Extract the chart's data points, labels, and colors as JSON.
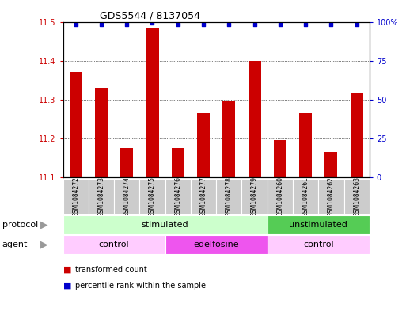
{
  "title": "GDS5544 / 8137054",
  "samples": [
    "GSM1084272",
    "GSM1084273",
    "GSM1084274",
    "GSM1084275",
    "GSM1084276",
    "GSM1084277",
    "GSM1084278",
    "GSM1084279",
    "GSM1084260",
    "GSM1084261",
    "GSM1084262",
    "GSM1084263"
  ],
  "bar_values": [
    11.37,
    11.33,
    11.175,
    11.485,
    11.175,
    11.265,
    11.295,
    11.4,
    11.195,
    11.265,
    11.165,
    11.315
  ],
  "percentile_values": [
    98,
    98,
    98,
    99,
    98,
    98,
    98,
    98,
    98,
    98,
    98,
    98
  ],
  "bar_color": "#cc0000",
  "percentile_color": "#0000cc",
  "ylim_left": [
    11.1,
    11.5
  ],
  "ylim_right": [
    0,
    100
  ],
  "yticks_left": [
    11.1,
    11.2,
    11.3,
    11.4,
    11.5
  ],
  "yticks_right": [
    0,
    25,
    50,
    75,
    100
  ],
  "protocol_groups": [
    {
      "label": "stimulated",
      "start": 0,
      "end": 8,
      "color": "#ccffcc"
    },
    {
      "label": "unstimulated",
      "start": 8,
      "end": 12,
      "color": "#55cc55"
    }
  ],
  "agent_groups": [
    {
      "label": "control",
      "start": 0,
      "end": 4,
      "color": "#ffccff"
    },
    {
      "label": "edelfosine",
      "start": 4,
      "end": 8,
      "color": "#ee55ee"
    },
    {
      "label": "control",
      "start": 8,
      "end": 12,
      "color": "#ffccff"
    }
  ],
  "legend_items": [
    {
      "label": "transformed count",
      "color": "#cc0000"
    },
    {
      "label": "percentile rank within the sample",
      "color": "#0000cc"
    }
  ],
  "bg_color": "#ffffff",
  "grid_color": "#000000",
  "sample_box_color": "#cccccc",
  "protocol_label": "protocol",
  "agent_label": "agent",
  "arrow_color": "#999999"
}
